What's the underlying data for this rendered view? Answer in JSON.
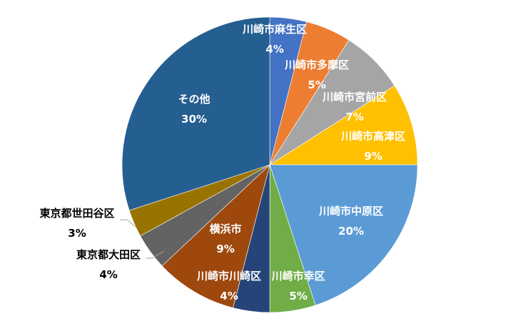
{
  "chart_data": {
    "type": "pie",
    "title": "",
    "start_angle_deg": 0,
    "direction": "clockwise",
    "slices": [
      {
        "label": "川崎市麻生区",
        "value": 4,
        "value_label": "4%",
        "color": "#4472c4"
      },
      {
        "label": "川崎市多摩区",
        "value": 5,
        "value_label": "5%",
        "color": "#ed7d31"
      },
      {
        "label": "川崎市宮前区",
        "value": 7,
        "value_label": "7%",
        "color": "#a5a5a5"
      },
      {
        "label": "川崎市高津区",
        "value": 9,
        "value_label": "9%",
        "color": "#ffc000"
      },
      {
        "label": "川崎市中原区",
        "value": 20,
        "value_label": "20%",
        "color": "#5b9bd5"
      },
      {
        "label": "川崎市幸区",
        "value": 5,
        "value_label": "5%",
        "color": "#70ad47"
      },
      {
        "label": "川崎市川崎区",
        "value": 4,
        "value_label": "4%",
        "color": "#264478"
      },
      {
        "label": "横浜市",
        "value": 9,
        "value_label": "9%",
        "color": "#9e480e"
      },
      {
        "label": "東京都大田区",
        "value": 4,
        "value_label": "4%",
        "color": "#636363"
      },
      {
        "label": "東京都世田谷区",
        "value": 3,
        "value_label": "3%",
        "color": "#997300"
      },
      {
        "label": "その他",
        "value": 30,
        "value_label": "30%",
        "color": "#255e91"
      }
    ]
  }
}
